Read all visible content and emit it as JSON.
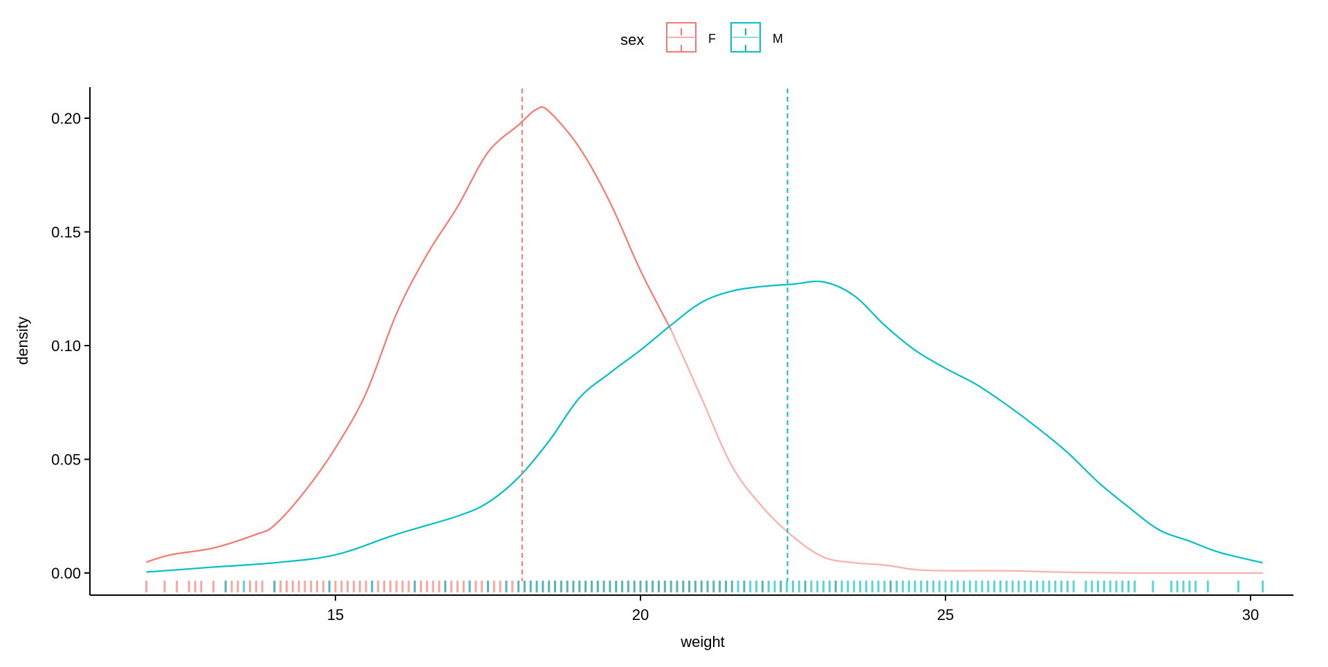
{
  "chart_data": {
    "type": "line",
    "subtype": "density with rug and mean lines",
    "title": "",
    "xlabel": "weight",
    "ylabel": "density",
    "xlim": [
      11.8,
      30.3
    ],
    "ylim": [
      -0.009,
      0.213
    ],
    "x_ticks": [
      15,
      20,
      25,
      30
    ],
    "x_tick_labels": [
      "15",
      "20",
      "25",
      "30"
    ],
    "y_ticks": [
      0,
      0.05,
      0.1,
      0.15,
      0.2
    ],
    "y_tick_labels": [
      "0.00",
      "0.05",
      "0.10",
      "0.15",
      "0.20"
    ],
    "grid": false,
    "legend": {
      "title": "sex",
      "placement": "top",
      "entries": [
        "F",
        "M"
      ]
    },
    "colors": {
      "F": "#F8766D",
      "M": "#00BFC4",
      "F_light": "#FBADA8"
    },
    "series": [
      {
        "name": "F",
        "mean": 18.06,
        "x": [
          11.9,
          12.3,
          13,
          13.7,
          14,
          14.5,
          15,
          15.5,
          16,
          16.5,
          17,
          17.5,
          18,
          18.3,
          18.5,
          19,
          19.5,
          20,
          20.5,
          21,
          21.5,
          22,
          22.5,
          23,
          23.5,
          24,
          24.5,
          25,
          26,
          27,
          28,
          29,
          30.2
        ],
        "y": [
          0.0048,
          0.008,
          0.011,
          0.017,
          0.021,
          0.036,
          0.055,
          0.079,
          0.114,
          0.14,
          0.161,
          0.185,
          0.197,
          0.204,
          0.203,
          0.187,
          0.163,
          0.133,
          0.107,
          0.077,
          0.047,
          0.029,
          0.016,
          0.007,
          0.0045,
          0.0035,
          0.0015,
          0.001,
          0.001,
          0.0003,
          0,
          0,
          0
        ],
        "rug": [
          11.9,
          12.2,
          12.4,
          12.6,
          12.7,
          12.8,
          13.0,
          13.2,
          13.3,
          13.4,
          13.6,
          13.7,
          13.8,
          14.0,
          14.1,
          14.2,
          14.3,
          14.4,
          14.5,
          14.6,
          14.7,
          14.8,
          14.9,
          15.0,
          15.1,
          15.2,
          15.3,
          15.4,
          15.5,
          15.6,
          15.7,
          15.8,
          15.9,
          16.0,
          16.1,
          16.2,
          16.3,
          16.4,
          16.5,
          16.6,
          16.7,
          16.8,
          16.9,
          17.0,
          17.1,
          17.2,
          17.3,
          17.4,
          17.5,
          17.6,
          17.7,
          17.8,
          17.9,
          18.0,
          18.1,
          18.2,
          18.3,
          18.4,
          18.5,
          18.6,
          18.7,
          18.8,
          18.9,
          19.0,
          19.1,
          19.2,
          19.3,
          19.4,
          19.5,
          19.6,
          19.7,
          19.8,
          19.9,
          20.0,
          20.1,
          20.2,
          20.3,
          20.4,
          20.5,
          20.6,
          20.7,
          20.8,
          20.9,
          21.0,
          21.1,
          21.2,
          21.3,
          21.4,
          21.5,
          21.7,
          22.0,
          22.3,
          22.7,
          23.2,
          24.1
        ]
      },
      {
        "name": "M",
        "mean": 22.41,
        "x": [
          11.9,
          13,
          14,
          15,
          16,
          17,
          17.5,
          18,
          18.5,
          19,
          19.5,
          20,
          20.5,
          21,
          21.5,
          22,
          22.5,
          23,
          23.5,
          24,
          24.5,
          25,
          25.5,
          26,
          26.5,
          27,
          27.5,
          28,
          28.5,
          29,
          29.5,
          30.2
        ],
        "y": [
          0.0004,
          0.0026,
          0.0045,
          0.008,
          0.017,
          0.025,
          0.031,
          0.042,
          0.058,
          0.077,
          0.088,
          0.098,
          0.109,
          0.119,
          0.124,
          0.126,
          0.127,
          0.128,
          0.122,
          0.109,
          0.098,
          0.09,
          0.083,
          0.074,
          0.064,
          0.053,
          0.04,
          0.029,
          0.019,
          0.014,
          0.009,
          0.0045
        ],
        "rug": [
          13.2,
          13.5,
          14.0,
          14.9,
          15.6,
          16.3,
          16.8,
          17.2,
          17.5,
          17.8,
          18.0,
          18.1,
          18.2,
          18.3,
          18.4,
          18.5,
          18.6,
          18.7,
          18.8,
          18.9,
          19.0,
          19.1,
          19.2,
          19.3,
          19.4,
          19.5,
          19.6,
          19.7,
          19.8,
          19.9,
          20.0,
          20.1,
          20.2,
          20.3,
          20.4,
          20.5,
          20.6,
          20.7,
          20.8,
          20.9,
          21.0,
          21.1,
          21.2,
          21.3,
          21.4,
          21.5,
          21.6,
          21.7,
          21.8,
          21.9,
          22.0,
          22.1,
          22.2,
          22.3,
          22.4,
          22.5,
          22.6,
          22.7,
          22.8,
          22.9,
          23.0,
          23.1,
          23.2,
          23.3,
          23.4,
          23.5,
          23.6,
          23.7,
          23.8,
          23.9,
          24.0,
          24.1,
          24.2,
          24.3,
          24.4,
          24.5,
          24.6,
          24.7,
          24.8,
          24.9,
          25.0,
          25.1,
          25.2,
          25.3,
          25.4,
          25.5,
          25.6,
          25.7,
          25.8,
          25.9,
          26.0,
          26.1,
          26.2,
          26.3,
          26.4,
          26.5,
          26.6,
          26.7,
          26.8,
          26.9,
          27.0,
          27.1,
          27.3,
          27.4,
          27.5,
          27.6,
          27.7,
          27.8,
          27.9,
          28.0,
          28.1,
          28.4,
          28.7,
          28.8,
          28.9,
          29.0,
          29.1,
          29.3,
          29.8,
          30.2
        ]
      }
    ]
  }
}
